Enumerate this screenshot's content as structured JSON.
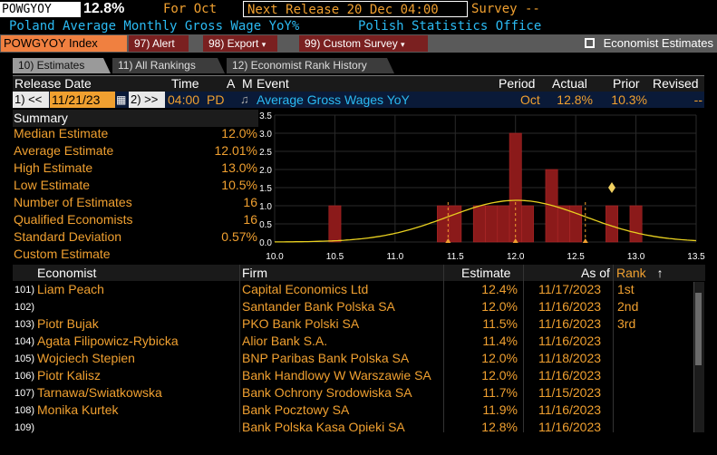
{
  "header": {
    "ticker": "POWGYOY",
    "value": "12.8%",
    "for_label": "For Oct",
    "next_release": "Next Release 20 Dec 04:00",
    "survey": "Survey --",
    "subtitle": "Poland Average Monthly Gross Wage YoY%",
    "source": "Polish Statistics Office"
  },
  "menu": {
    "index": "POWGYOY Index",
    "alert": "97) Alert",
    "export": "98) Export",
    "custom_survey": "99) Custom Survey",
    "economist_estimates": "Economist Estimates"
  },
  "tabs": [
    {
      "label": "10) Estimates"
    },
    {
      "label": "11) All Rankings"
    },
    {
      "label": "12) Economist Rank History"
    }
  ],
  "grid": {
    "headers": {
      "release_date": "Release Date",
      "time": "Time",
      "a": "A",
      "m": "M",
      "event": "Event",
      "period": "Period",
      "actual": "Actual",
      "prior": "Prior",
      "revised": "Revised"
    },
    "row": {
      "prev": "1) <<",
      "date": "11/21/23",
      "next": "2) >>",
      "time": "04:00",
      "pd": "PD",
      "event": "Average Gross Wages YoY",
      "period": "Oct",
      "actual": "12.8%",
      "prior": "10.3%",
      "revised": "--"
    }
  },
  "summary": {
    "title": "Summary",
    "items": [
      {
        "label": "Median Estimate",
        "value": "12.0%"
      },
      {
        "label": "Average Estimate",
        "value": "12.01%"
      },
      {
        "label": "High Estimate",
        "value": "13.0%"
      },
      {
        "label": "Low Estimate",
        "value": "10.5%"
      },
      {
        "label": "Number of Estimates",
        "value": "16"
      },
      {
        "label": "Qualified Economists",
        "value": "16"
      },
      {
        "label": "Standard Deviation",
        "value": "0.57%"
      },
      {
        "label": "Custom Estimate",
        "value": ""
      }
    ]
  },
  "chart_data": {
    "type": "bar",
    "xlim": [
      10.0,
      13.5
    ],
    "ylim": [
      0,
      3.5
    ],
    "x_ticks": [
      "10.0",
      "10.5",
      "11.0",
      "11.5",
      "12.0",
      "12.5",
      "13.0",
      "13.5"
    ],
    "y_ticks": [
      "0.0",
      "0.5",
      "1.0",
      "1.5",
      "2.0",
      "2.5",
      "3.0",
      "3.5"
    ],
    "bins": [
      {
        "x": 10.5,
        "count": 1
      },
      {
        "x": 11.4,
        "count": 1
      },
      {
        "x": 11.5,
        "count": 1
      },
      {
        "x": 11.7,
        "count": 1
      },
      {
        "x": 11.8,
        "count": 1
      },
      {
        "x": 11.9,
        "count": 1
      },
      {
        "x": 12.0,
        "count": 3
      },
      {
        "x": 12.1,
        "count": 1
      },
      {
        "x": 12.3,
        "count": 2
      },
      {
        "x": 12.4,
        "count": 1
      },
      {
        "x": 12.5,
        "count": 1
      },
      {
        "x": 12.8,
        "count": 1
      },
      {
        "x": 13.0,
        "count": 1
      }
    ],
    "actual": 12.8,
    "markers": [
      11.44,
      12.0,
      12.58
    ],
    "curve": {
      "mean": 12.01,
      "sd": 0.57
    },
    "colors": {
      "bar": "#8b1a1a",
      "curve": "#e8d020",
      "marker": "#f0a030",
      "actual": "#f0d060"
    }
  },
  "table": {
    "headers": {
      "economist": "Economist",
      "firm": "Firm",
      "estimate": "Estimate",
      "as_of": "As of",
      "rank": "Rank"
    },
    "rows": [
      {
        "num": "101)",
        "economist": "Liam Peach",
        "firm": "Capital Economics Ltd",
        "estimate": "12.4%",
        "as_of": "11/17/2023",
        "rank": "1st"
      },
      {
        "num": "102)",
        "economist": "",
        "firm": "Santander Bank Polska SA",
        "estimate": "12.0%",
        "as_of": "11/16/2023",
        "rank": "2nd"
      },
      {
        "num": "103)",
        "economist": "Piotr Bujak",
        "firm": "PKO Bank Polski SA",
        "estimate": "11.5%",
        "as_of": "11/16/2023",
        "rank": "3rd"
      },
      {
        "num": "104)",
        "economist": "Agata Filipowicz-Rybicka",
        "firm": "Alior Bank S.A.",
        "estimate": "11.4%",
        "as_of": "11/16/2023",
        "rank": ""
      },
      {
        "num": "105)",
        "economist": "Wojciech Stepien",
        "firm": "BNP Paribas Bank Polska SA",
        "estimate": "12.0%",
        "as_of": "11/18/2023",
        "rank": ""
      },
      {
        "num": "106)",
        "economist": "Piotr Kalisz",
        "firm": "Bank Handlowy W Warszawie SA",
        "estimate": "12.0%",
        "as_of": "11/16/2023",
        "rank": ""
      },
      {
        "num": "107)",
        "economist": "Tarnawa/Swiatkowska",
        "firm": "Bank Ochrony Srodowiska SA",
        "estimate": "11.7%",
        "as_of": "11/15/2023",
        "rank": ""
      },
      {
        "num": "108)",
        "economist": "Monika Kurtek",
        "firm": "Bank Pocztowy SA",
        "estimate": "11.9%",
        "as_of": "11/16/2023",
        "rank": ""
      },
      {
        "num": "109)",
        "economist": "",
        "firm": "Bank Polska Kasa Opieki SA",
        "estimate": "12.8%",
        "as_of": "11/16/2023",
        "rank": ""
      }
    ]
  }
}
